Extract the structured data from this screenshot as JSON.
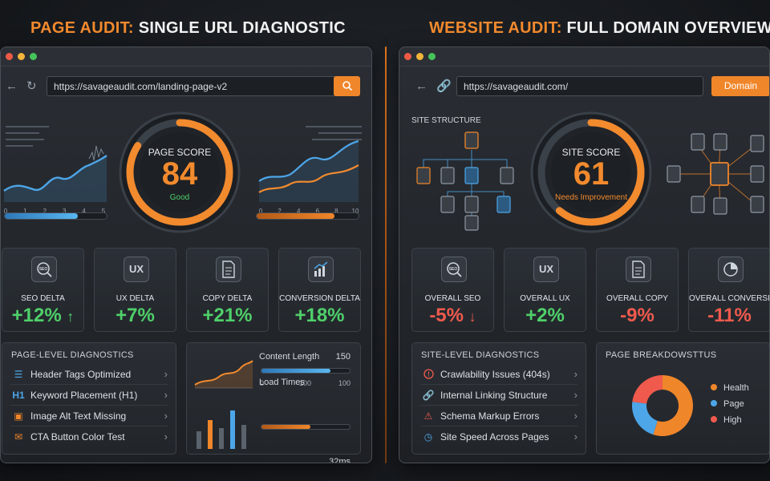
{
  "headings": {
    "left": {
      "accent": "PAGE AUDIT:",
      "rest": " SINGLE URL DIAGNOSTIC"
    },
    "right": {
      "accent": "WEBSITE AUDIT:",
      "rest": " FULL DOMAIN OVERVIEW"
    }
  },
  "colors": {
    "accent": "#f28a2e",
    "positive": "#4fd06a",
    "negative": "#ef5a4d",
    "blue": "#4da6e8"
  },
  "page_audit": {
    "url": "https://savageaudit.com/landing-page-v2",
    "search_icon": "search-icon",
    "chart_left_ticks": [
      "0",
      "1",
      "2",
      "3",
      "4",
      "5"
    ],
    "chart_right_ticks": [
      "0",
      "2",
      "4",
      "6",
      "8",
      "10"
    ],
    "score": {
      "label": "PAGE SCORE",
      "value": "84",
      "status": "Good",
      "fraction": 0.84
    },
    "progress_left": 0.72,
    "progress_right": 0.76,
    "cards": [
      {
        "icon": "seo-magnifier-icon",
        "icon_text": "SEO",
        "label": "SEO DELTA",
        "value": "+12%",
        "arrow": "↑"
      },
      {
        "icon": "ux-icon",
        "icon_text": "UX",
        "label": "UX DELTA",
        "value": "+7%",
        "arrow": ""
      },
      {
        "icon": "document-icon",
        "icon_text": "≣",
        "label": "COPY DELTA",
        "value": "+21%",
        "arrow": ""
      },
      {
        "icon": "bar-chart-icon",
        "icon_text": "📊",
        "label": "CONVERSION DELTA",
        "value": "+18%",
        "arrow": ""
      }
    ],
    "diagnostics": {
      "title": "PAGE-LEVEL DIAGNOSTICS",
      "items": [
        {
          "icon": "list-icon",
          "glyph": "☰",
          "label": "Header Tags Optimized"
        },
        {
          "icon": "h1-icon",
          "glyph": "H1",
          "label": "Keyword Placement (H1)"
        },
        {
          "icon": "image-icon",
          "glyph": "▣",
          "label": "Image Alt Text Missing"
        },
        {
          "icon": "chat-icon",
          "glyph": "✉",
          "label": "CTA Button Color Test"
        }
      ]
    },
    "metrics": {
      "content_length": {
        "label": "Content Length",
        "value": "150",
        "ticks": [
          "0",
          "100",
          "100"
        ],
        "fill": 0.78
      },
      "load_times": {
        "label": "Load Times",
        "value": "32ms",
        "fill": 0.55
      }
    }
  },
  "website_audit": {
    "url": "https://savageaudit.com/",
    "domain_button": "Domain",
    "site_structure_label": "SITE STRUCTURE",
    "score": {
      "label": "SITE SCORE",
      "value": "61",
      "status": "Needs Improvement",
      "fraction": 0.61
    },
    "cards": [
      {
        "icon": "seo-magnifier-icon",
        "icon_text": "SEO",
        "label": "OVERALL SEO",
        "value": "-5%",
        "arrow": "↓"
      },
      {
        "icon": "ux-icon",
        "icon_text": "UX",
        "label": "OVERALL UX",
        "value": "+2%",
        "arrow": ""
      },
      {
        "icon": "document-icon",
        "icon_text": "≣",
        "label": "OVERALL COPY",
        "value": "-9%",
        "arrow": ""
      },
      {
        "icon": "pie-chart-icon",
        "icon_text": "◔",
        "label": "OVERALL CONVERSION",
        "value": "-11%",
        "arrow": ""
      }
    ],
    "diagnostics": {
      "title": "SITE-LEVEL DIAGNOSTICS",
      "items": [
        {
          "icon": "alert-circle-icon",
          "glyph": "!",
          "label": "Crawlability Issues (404s)"
        },
        {
          "icon": "link-icon",
          "glyph": "🔗",
          "label": "Internal Linking Structure"
        },
        {
          "icon": "warning-triangle-icon",
          "glyph": "⚠",
          "label": "Schema Markup Errors"
        },
        {
          "icon": "speedometer-icon",
          "glyph": "◷",
          "label": "Site Speed Across Pages"
        }
      ]
    },
    "breakdown": {
      "title": "PAGE BREAKDOWSTTUS",
      "legend": [
        {
          "label": "Health",
          "color": "#f0862a"
        },
        {
          "label": "Page",
          "color": "#4da6e8"
        },
        {
          "label": "High",
          "color": "#ef5a4d"
        }
      ]
    }
  },
  "chart_data": {
    "type": "pie",
    "categories": [
      "Health",
      "Page",
      "High"
    ],
    "values": [
      55,
      22,
      23
    ],
    "title": "PAGE BREAKDOWSTTUS"
  }
}
